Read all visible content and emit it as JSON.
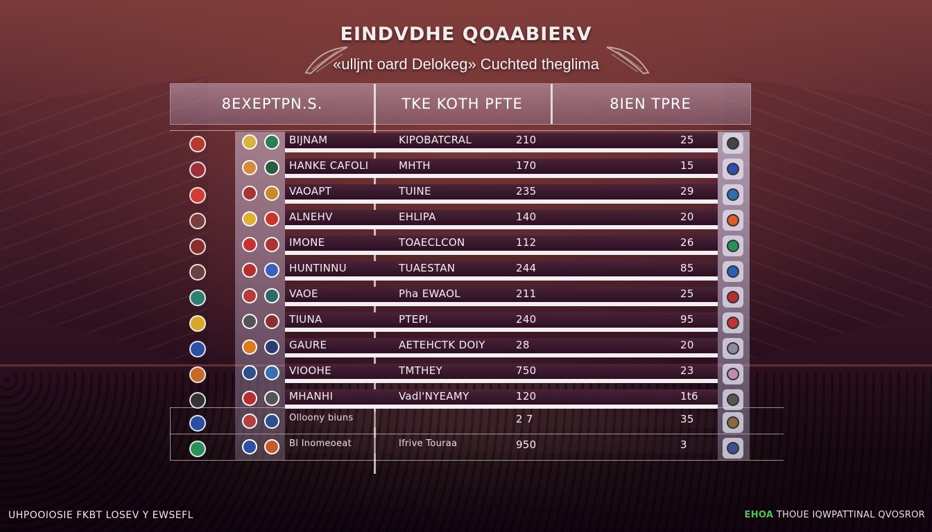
{
  "header": {
    "title": "EINDVDHE QOAABIERV",
    "subtitle": "«ulljnt oard Delokeg» Cuchted theglima"
  },
  "columns": [
    "8EXEPTPN.S.",
    "TKE KOTH PFTE",
    "8IEN TPRE"
  ],
  "rows": [
    {
      "name": "BIJNAM",
      "location": "KIPOBATCRAL",
      "value1": "210",
      "value2": "25",
      "left_colors": [
        "#d7b341",
        "#2e7d54"
      ],
      "badge_color": "#b33b2e",
      "right_color": "#444"
    },
    {
      "name": "HANKE CAFOLI",
      "location": "MHTH",
      "value1": "170",
      "value2": "15",
      "left_colors": [
        "#d98b3d",
        "#2b5d3f"
      ],
      "badge_color": "#9c2f3a",
      "right_color": "#2d4fa8"
    },
    {
      "name": "VAOAPT",
      "location": "TUINE",
      "value1": "235",
      "value2": "29",
      "left_colors": [
        "#a33",
        "#c98a2b"
      ],
      "badge_color": "#d23d33",
      "right_color": "#2f6fb0"
    },
    {
      "name": "ALNEHV",
      "location": "EHLIPA",
      "value1": "140",
      "value2": "20",
      "left_colors": [
        "#e0b030",
        "#c8342e"
      ],
      "badge_color": "#7a3d3d",
      "right_color": "#e05a2a"
    },
    {
      "name": "IMONE",
      "location": "TOAECLCON",
      "value1": "112",
      "value2": "26",
      "left_colors": [
        "#c83036",
        "#a33"
      ],
      "badge_color": "#8b2d2d",
      "right_color": "#2a8f5a"
    },
    {
      "name": "HUNTINNU",
      "location": "TUAESTAN",
      "value1": "244",
      "value2": "85",
      "left_colors": [
        "#b52f2f",
        "#3a5fbf"
      ],
      "badge_color": "#6d4040",
      "right_color": "#2a5fb8"
    },
    {
      "name": "VAOE",
      "location": "Pha EWAOL",
      "value1": "211",
      "value2": "25",
      "left_colors": [
        "#b53a3a",
        "#2c6a6a"
      ],
      "badge_color": "#2d7f6f",
      "right_color": "#b52f2f"
    },
    {
      "name": "TIUNA",
      "location": "PTEPI.",
      "value1": "240",
      "value2": "95",
      "left_colors": [
        "#555",
        "#8b3030"
      ],
      "badge_color": "#d9a82a",
      "right_color": "#c23232"
    },
    {
      "name": "GAURE",
      "location": "AETEHCTK DOIY",
      "value1": "28",
      "value2": "20",
      "left_colors": [
        "#e07a1f",
        "#2d3d6f"
      ],
      "badge_color": "#2a4fa5",
      "right_color": "#8a8aa5"
    },
    {
      "name": "VIOOHE",
      "location": "TMTHEY",
      "value1": "750",
      "value2": "23",
      "left_colors": [
        "#2d4f8f",
        "#3a6fb5"
      ],
      "badge_color": "#c46a2a",
      "right_color": "#c08ab5"
    },
    {
      "name": "MHANHI",
      "location": "Vadl'NYEAMY",
      "value1": "120",
      "value2": "1t6",
      "left_colors": [
        "#b52f2f",
        "#555"
      ],
      "badge_color": "#333",
      "right_color": "#555"
    },
    {
      "name": "Olloony biuns",
      "location": "",
      "value1": "2 7",
      "value2": "35",
      "left_colors": [
        "#b54040",
        "#2d4f8f"
      ],
      "badge_color": "#2a4f9f",
      "right_color": "#8a6a3a"
    },
    {
      "name": "Bl Inomeoeat",
      "location": "Ifrive Touraa",
      "value1": "950",
      "value2": "3",
      "left_colors": [
        "#2d4fa8",
        "#c85a2a"
      ],
      "badge_color": "#2a8f5a",
      "right_color": "#3a4f8f"
    }
  ],
  "footer": {
    "left": "UHPOOIOSIE FKBT LOSEV Y EWSEFL",
    "right_accent": "EHOA",
    "right": " THOUE IQWPATTINAL QVOSROR"
  }
}
